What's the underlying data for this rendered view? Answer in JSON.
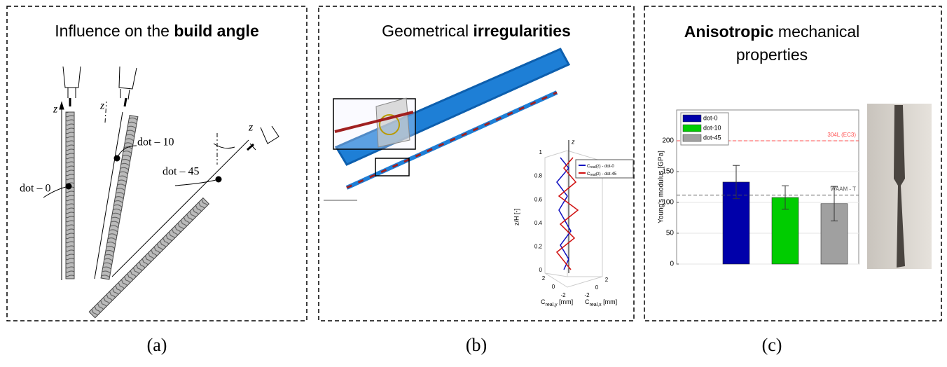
{
  "panels": [
    {
      "title_plain": "Influence on the ",
      "title_bold": "build angle",
      "axis_label": "z",
      "labels": [
        "dot – 0",
        "dot – 10",
        "dot – 45"
      ],
      "caption": "(a)"
    },
    {
      "title_plain": "Geometrical ",
      "title_bold": "irregularities",
      "caption": "(b)",
      "plot": {
        "z_label": "z/H [-]",
        "z_axis": "z",
        "zticks": [
          0,
          0.2,
          0.4,
          0.6,
          0.8,
          1
        ],
        "yticks": [
          2,
          0,
          -2
        ],
        "xticks": [
          2,
          0,
          -2
        ],
        "y_label": {
          "main": "C",
          "sub": "real,y",
          "unit": " [mm]"
        },
        "x_label": {
          "main": "C",
          "sub": "real,x",
          "unit": " [mm]"
        },
        "legend": [
          {
            "main": "C",
            "sub": "real",
            "rest": "(z) - dot-0"
          },
          {
            "main": "C",
            "sub": "real",
            "rest": "(z) - dot-45"
          }
        ]
      }
    },
    {
      "title_bold": "Anisotropic",
      "title_plain": " mechanical",
      "title_line2": "properties",
      "caption": "(c)"
    }
  ],
  "chart_data": {
    "type": "bar",
    "ylabel": "Young's modulus [GPa]",
    "categories": [
      "dot-0",
      "dot-10",
      "dot-45"
    ],
    "values": [
      133,
      108,
      98
    ],
    "errors": [
      27,
      19,
      28
    ],
    "colors": [
      "#0000aa",
      "#00cc00",
      "#a0a0a0"
    ],
    "ylim": [
      0,
      250
    ],
    "yticks": [
      0,
      50,
      100,
      150,
      200
    ],
    "grid": true,
    "legend": "upper left",
    "reference_lines": [
      {
        "value": 200,
        "label": "304L (EC3)",
        "color": "#ff5050"
      },
      {
        "value": 112,
        "label": "WAAM - T",
        "color": "#555555"
      }
    ]
  }
}
